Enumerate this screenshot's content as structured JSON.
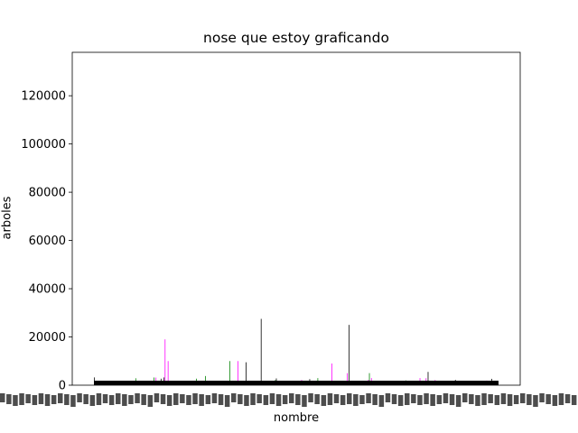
{
  "chart_data": {
    "type": "bar",
    "title": "nose que estoy graficando",
    "xlabel": "nombre",
    "ylabel": "arboles",
    "ylim": [
      0,
      138000
    ],
    "yticks": [
      0,
      20000,
      40000,
      60000,
      80000,
      100000,
      120000
    ],
    "ytick_labels": [
      "0",
      "20000",
      "40000",
      "60000",
      "80000",
      "100000",
      "120000"
    ],
    "grid": false,
    "legend": "none",
    "bar_count": 400,
    "colors": [
      "#000000",
      "#ff00ff",
      "#008000"
    ],
    "categories": [],
    "values": [],
    "note_xticks": "x tick labels are overlapping and illegible"
  }
}
